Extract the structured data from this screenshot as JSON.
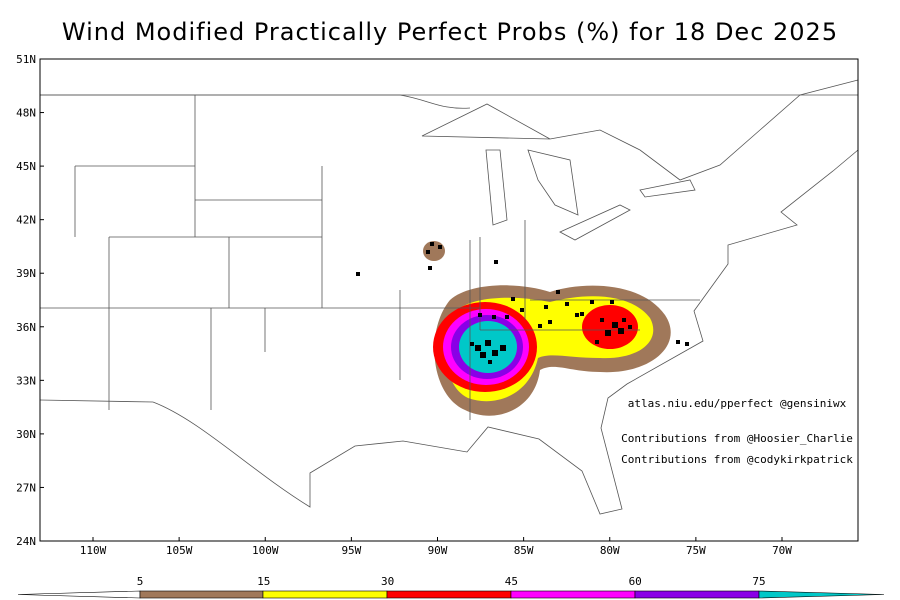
{
  "title": "Wind Modified Practically Perfect Probs (%) for 18 Dec 2025",
  "lat_labels": [
    "51N",
    "48N",
    "45N",
    "42N",
    "39N",
    "36N",
    "33N",
    "30N",
    "27N",
    "24N"
  ],
  "lon_labels": [
    "110W",
    "105W",
    "100W",
    "95W",
    "90W",
    "85W",
    "80W",
    "75W",
    "70W"
  ],
  "credits": [
    "atlas.niu.edu/pperfect  @gensiniwx",
    "Contributions from @Hoosier_Charlie",
    "Contributions from @codykirkpatrick"
  ],
  "colorbar": {
    "labels": [
      "5",
      "15",
      "30",
      "45",
      "60",
      "75"
    ]
  }
}
